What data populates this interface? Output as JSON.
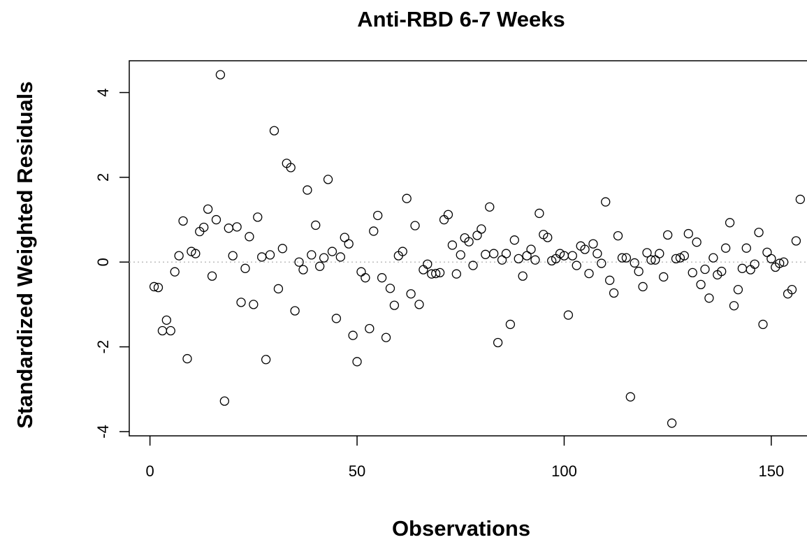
{
  "chart_data": {
    "type": "scatter",
    "title": "Anti-RBD 6-7 Weeks",
    "xlabel": "Observations",
    "ylabel": "Standardized Weighted Residuals",
    "xlim": [
      -5,
      162
    ],
    "ylim": [
      -4.1,
      4.75
    ],
    "xticks": [
      0,
      50,
      100,
      150
    ],
    "yticks": [
      -4,
      -2,
      0,
      2,
      4
    ],
    "reference_line": {
      "y": 0,
      "style": "dotted",
      "color": "#bdbdbd"
    },
    "marker": "open-circle",
    "grid": false,
    "legend": "none",
    "points": [
      [
        1,
        -0.58
      ],
      [
        2,
        -0.6
      ],
      [
        3,
        -1.62
      ],
      [
        4,
        -1.37
      ],
      [
        5,
        -1.62
      ],
      [
        6,
        -0.23
      ],
      [
        7,
        0.15
      ],
      [
        8,
        0.97
      ],
      [
        9,
        -2.28
      ],
      [
        10,
        0.25
      ],
      [
        11,
        0.2
      ],
      [
        12,
        0.72
      ],
      [
        13,
        0.82
      ],
      [
        14,
        1.25
      ],
      [
        15,
        -0.33
      ],
      [
        16,
        1.0
      ],
      [
        17,
        4.42
      ],
      [
        18,
        -3.28
      ],
      [
        19,
        0.8
      ],
      [
        20,
        0.15
      ],
      [
        21,
        0.83
      ],
      [
        22,
        -0.95
      ],
      [
        23,
        -0.15
      ],
      [
        24,
        0.6
      ],
      [
        25,
        -1.0
      ],
      [
        26,
        1.06
      ],
      [
        27,
        0.12
      ],
      [
        28,
        -2.3
      ],
      [
        29,
        0.17
      ],
      [
        30,
        3.1
      ],
      [
        31,
        -0.63
      ],
      [
        32,
        0.32
      ],
      [
        33,
        2.33
      ],
      [
        34,
        2.23
      ],
      [
        35,
        -1.15
      ],
      [
        36,
        0.0
      ],
      [
        37,
        -0.18
      ],
      [
        38,
        1.7
      ],
      [
        39,
        0.17
      ],
      [
        40,
        0.87
      ],
      [
        41,
        -0.1
      ],
      [
        42,
        0.1
      ],
      [
        43,
        1.95
      ],
      [
        44,
        0.25
      ],
      [
        45,
        -1.33
      ],
      [
        46,
        0.12
      ],
      [
        47,
        0.58
      ],
      [
        48,
        0.43
      ],
      [
        49,
        -1.73
      ],
      [
        50,
        -2.35
      ],
      [
        51,
        -0.23
      ],
      [
        52,
        -0.37
      ],
      [
        53,
        -1.57
      ],
      [
        54,
        0.73
      ],
      [
        55,
        1.1
      ],
      [
        56,
        -0.37
      ],
      [
        57,
        -1.78
      ],
      [
        58,
        -0.62
      ],
      [
        59,
        -1.02
      ],
      [
        60,
        0.15
      ],
      [
        61,
        0.25
      ],
      [
        62,
        1.5
      ],
      [
        63,
        -0.75
      ],
      [
        64,
        0.86
      ],
      [
        65,
        -1.0
      ],
      [
        66,
        -0.18
      ],
      [
        67,
        -0.05
      ],
      [
        68,
        -0.28
      ],
      [
        69,
        -0.27
      ],
      [
        70,
        -0.25
      ],
      [
        71,
        1.0
      ],
      [
        72,
        1.12
      ],
      [
        73,
        0.4
      ],
      [
        74,
        -0.28
      ],
      [
        75,
        0.17
      ],
      [
        76,
        0.57
      ],
      [
        77,
        0.48
      ],
      [
        78,
        -0.08
      ],
      [
        79,
        0.63
      ],
      [
        80,
        0.78
      ],
      [
        81,
        0.18
      ],
      [
        82,
        1.3
      ],
      [
        83,
        0.2
      ],
      [
        84,
        -1.9
      ],
      [
        85,
        0.05
      ],
      [
        86,
        0.2
      ],
      [
        87,
        -1.47
      ],
      [
        88,
        0.52
      ],
      [
        89,
        0.08
      ],
      [
        90,
        -0.33
      ],
      [
        91,
        0.15
      ],
      [
        92,
        0.3
      ],
      [
        93,
        0.05
      ],
      [
        94,
        1.15
      ],
      [
        95,
        0.65
      ],
      [
        96,
        0.58
      ],
      [
        97,
        0.03
      ],
      [
        98,
        0.08
      ],
      [
        99,
        0.2
      ],
      [
        100,
        0.15
      ],
      [
        101,
        -1.25
      ],
      [
        102,
        0.15
      ],
      [
        103,
        -0.08
      ],
      [
        104,
        0.38
      ],
      [
        105,
        0.3
      ],
      [
        106,
        -0.27
      ],
      [
        107,
        0.43
      ],
      [
        108,
        0.2
      ],
      [
        109,
        -0.03
      ],
      [
        110,
        1.42
      ],
      [
        111,
        -0.43
      ],
      [
        112,
        -0.73
      ],
      [
        113,
        0.62
      ],
      [
        114,
        0.1
      ],
      [
        115,
        0.1
      ],
      [
        116,
        -3.18
      ],
      [
        117,
        -0.02
      ],
      [
        118,
        -0.22
      ],
      [
        119,
        -0.58
      ],
      [
        120,
        0.22
      ],
      [
        121,
        0.05
      ],
      [
        122,
        0.05
      ],
      [
        123,
        0.2
      ],
      [
        124,
        -0.35
      ],
      [
        125,
        0.64
      ],
      [
        126,
        -3.8
      ],
      [
        127,
        0.08
      ],
      [
        128,
        0.1
      ],
      [
        129,
        0.15
      ],
      [
        130,
        0.67
      ],
      [
        131,
        -0.25
      ],
      [
        132,
        0.47
      ],
      [
        133,
        -0.53
      ],
      [
        134,
        -0.17
      ],
      [
        135,
        -0.85
      ],
      [
        136,
        0.1
      ],
      [
        137,
        -0.3
      ],
      [
        138,
        -0.22
      ],
      [
        139,
        0.33
      ],
      [
        140,
        0.93
      ],
      [
        141,
        -1.03
      ],
      [
        142,
        -0.65
      ],
      [
        143,
        -0.15
      ],
      [
        144,
        0.33
      ],
      [
        145,
        -0.18
      ],
      [
        146,
        -0.05
      ],
      [
        147,
        0.7
      ],
      [
        148,
        -1.47
      ],
      [
        149,
        0.23
      ],
      [
        150,
        0.08
      ],
      [
        151,
        -0.12
      ],
      [
        152,
        -0.03
      ],
      [
        153,
        0.0
      ],
      [
        154,
        -0.75
      ],
      [
        155,
        -0.65
      ],
      [
        156,
        0.5
      ],
      [
        157,
        1.48
      ]
    ]
  }
}
